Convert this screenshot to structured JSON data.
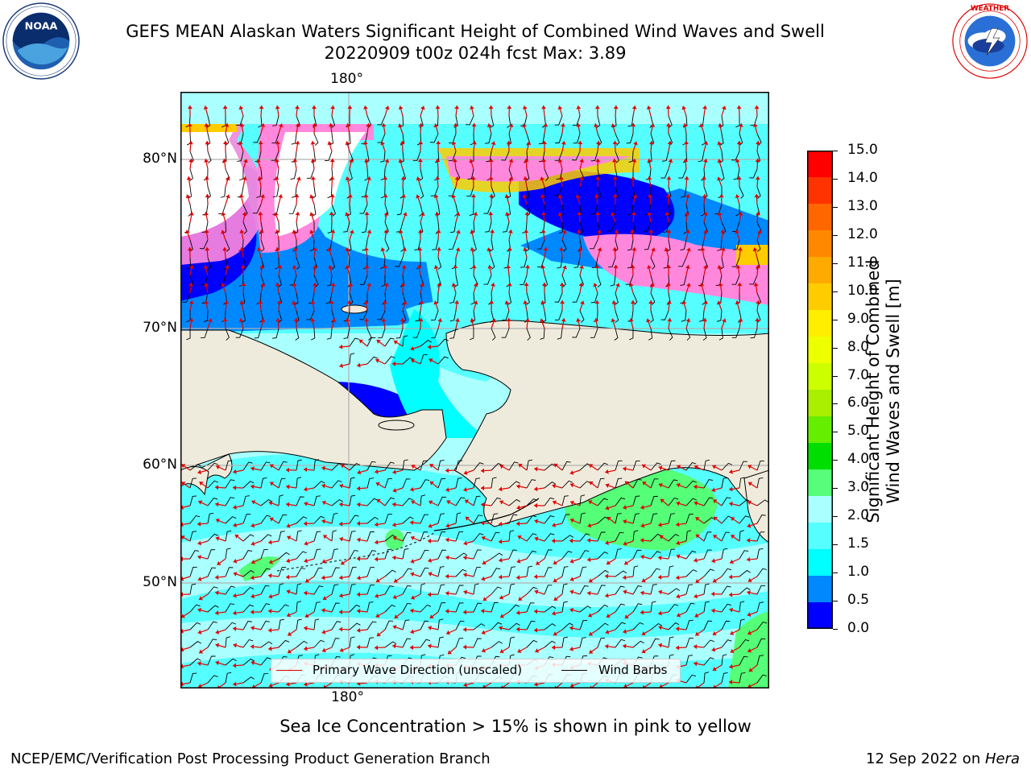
{
  "header": {
    "title": "GEFS MEAN Alaskan Waters Significant Height of Combined Wind Waves and Swell",
    "subtitle": "20220909 t00z 024h fcst   Max: 3.89"
  },
  "logos": {
    "left": {
      "name": "noaa-logo",
      "text": "NOAA",
      "ring_text": "NATIONAL OCEANIC AND ATMOSPHERIC ADMINISTRATION · U.S. DEPARTMENT OF COMMERCE"
    },
    "right": {
      "name": "nws-logo",
      "ring_text": "NATIONAL WEATHER SERVICE"
    }
  },
  "map": {
    "lon_labels": {
      "top": "180°",
      "bottom": "180°"
    },
    "lat_labels": [
      "80°N",
      "70°N",
      "60°N",
      "50°N"
    ],
    "land_color": "#efebdc",
    "ice_note": "Sea Ice Concentration > 15% is shown in pink to yellow"
  },
  "legend": {
    "wave_dir_label": "Primary Wave Direction (unscaled)",
    "wave_dir_color": "#e00000",
    "wind_barbs_label": "Wind Barbs",
    "wind_barbs_color": "#000000"
  },
  "colorbar": {
    "label_line1": "Significant Height of Combined",
    "label_line2": "Wind Waves and Swell [m]",
    "ticks": [
      "15.0",
      "14.0",
      "13.0",
      "12.0",
      "11.0",
      "10.0",
      "9.0",
      "8.0",
      "7.0",
      "6.0",
      "5.0",
      "4.0",
      "3.0",
      "2.0",
      "1.5",
      "1.0",
      "0.5",
      "0.0"
    ],
    "colors_top_to_bottom": [
      "#ff0000",
      "#ff3300",
      "#ff6600",
      "#ff8800",
      "#ffaa00",
      "#ffcc00",
      "#ffee00",
      "#eeff00",
      "#ccff00",
      "#aaee00",
      "#66ee00",
      "#00dd00",
      "#55ff77",
      "#aaffff",
      "#55ffff",
      "#00ffff",
      "#0088ff",
      "#0000ff"
    ]
  },
  "footer": {
    "left": "NCEP/EMC/Verification Post Processing Product Generation Branch",
    "right_date": "12 Sep 2022 on ",
    "right_host": "Hera"
  }
}
